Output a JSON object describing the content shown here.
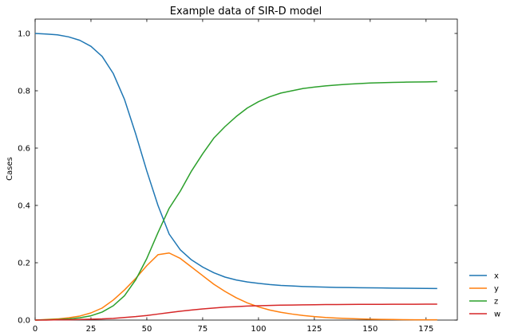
{
  "chart_data": {
    "type": "line",
    "title": "Example data of SIR-D model",
    "xlabel": "",
    "ylabel": "Cases",
    "xlim": [
      0,
      189
    ],
    "ylim": [
      0,
      1.05
    ],
    "xticks": [
      0,
      25,
      50,
      75,
      100,
      125,
      150,
      175
    ],
    "yticks": [
      0.0,
      0.2,
      0.4,
      0.6,
      0.8,
      1.0
    ],
    "ytick_labels": [
      "0.0",
      "0.2",
      "0.4",
      "0.6",
      "0.8",
      "1.0"
    ],
    "grid": false,
    "legend_position": "outside-bottom-right",
    "x": [
      0,
      5,
      10,
      15,
      20,
      25,
      30,
      35,
      40,
      45,
      50,
      55,
      60,
      65,
      70,
      75,
      80,
      85,
      90,
      95,
      100,
      105,
      110,
      115,
      120,
      125,
      130,
      135,
      140,
      145,
      150,
      155,
      160,
      165,
      170,
      175,
      180
    ],
    "series": [
      {
        "name": "x",
        "color": "#1f77b4",
        "values": [
          1.0,
          0.998,
          0.995,
          0.988,
          0.976,
          0.955,
          0.92,
          0.86,
          0.77,
          0.65,
          0.52,
          0.4,
          0.3,
          0.245,
          0.21,
          0.185,
          0.165,
          0.15,
          0.14,
          0.133,
          0.128,
          0.124,
          0.121,
          0.119,
          0.117,
          0.116,
          0.115,
          0.114,
          0.1135,
          0.113,
          0.1125,
          0.112,
          0.1115,
          0.111,
          0.1108,
          0.1105,
          0.11
        ]
      },
      {
        "name": "y",
        "color": "#ff7f0e",
        "values": [
          0.0,
          0.002,
          0.004,
          0.008,
          0.014,
          0.025,
          0.042,
          0.07,
          0.105,
          0.145,
          0.19,
          0.228,
          0.234,
          0.215,
          0.185,
          0.155,
          0.125,
          0.1,
          0.078,
          0.06,
          0.046,
          0.035,
          0.027,
          0.021,
          0.016,
          0.012,
          0.009,
          0.007,
          0.0055,
          0.004,
          0.003,
          0.0025,
          0.002,
          0.0015,
          0.001,
          0.001,
          0.001
        ]
      },
      {
        "name": "z",
        "color": "#2ca02c",
        "values": [
          0.0,
          0.001,
          0.002,
          0.004,
          0.008,
          0.015,
          0.028,
          0.05,
          0.085,
          0.14,
          0.215,
          0.305,
          0.39,
          0.45,
          0.52,
          0.58,
          0.635,
          0.675,
          0.71,
          0.74,
          0.762,
          0.779,
          0.792,
          0.8,
          0.808,
          0.813,
          0.817,
          0.82,
          0.823,
          0.825,
          0.827,
          0.828,
          0.829,
          0.83,
          0.8305,
          0.831,
          0.832
        ]
      },
      {
        "name": "w",
        "color": "#d62728",
        "values": [
          0.0,
          0.0,
          0.001,
          0.001,
          0.002,
          0.003,
          0.004,
          0.006,
          0.009,
          0.012,
          0.016,
          0.021,
          0.026,
          0.031,
          0.035,
          0.039,
          0.042,
          0.045,
          0.047,
          0.049,
          0.05,
          0.051,
          0.052,
          0.0525,
          0.053,
          0.0535,
          0.054,
          0.0542,
          0.0545,
          0.0547,
          0.0549,
          0.055,
          0.0551,
          0.0552,
          0.0553,
          0.0554,
          0.0555
        ]
      }
    ]
  }
}
